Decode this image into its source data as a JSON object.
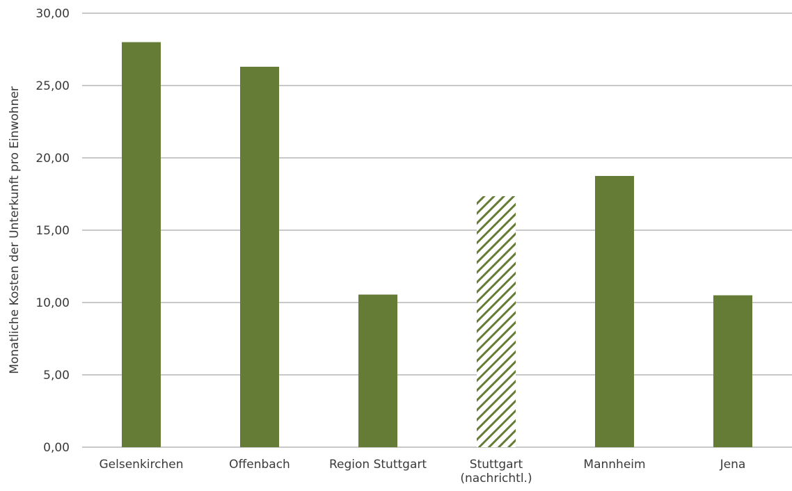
{
  "chart_data": {
    "type": "bar",
    "title": "",
    "xlabel": "",
    "ylabel": "Monatliche Kosten der Unterkunft pro Einwohner",
    "ylim": [
      0,
      30
    ],
    "yticks": [
      0,
      5,
      10,
      15,
      20,
      25,
      30
    ],
    "ytick_labels": [
      "0,00",
      "5,00",
      "10,00",
      "15,00",
      "20,00",
      "25,00",
      "30,00"
    ],
    "grid": true,
    "categories": [
      [
        "Gelsenkirchen"
      ],
      [
        "Offenbach"
      ],
      [
        "Region Stuttgart"
      ],
      [
        "Stuttgart",
        "(nachrichtl.)"
      ],
      [
        "Mannheim"
      ],
      [
        "Jena"
      ]
    ],
    "values": [
      28.0,
      26.3,
      10.55,
      17.35,
      18.75,
      10.5
    ],
    "hatched": [
      false,
      false,
      false,
      true,
      false,
      false
    ],
    "colors": {
      "bar": "#647c35",
      "hatch_stroke": "#647c35",
      "hatch_bg": "#ffffff",
      "grid": "#a6a6a6",
      "text": "#3a3a3a"
    }
  }
}
